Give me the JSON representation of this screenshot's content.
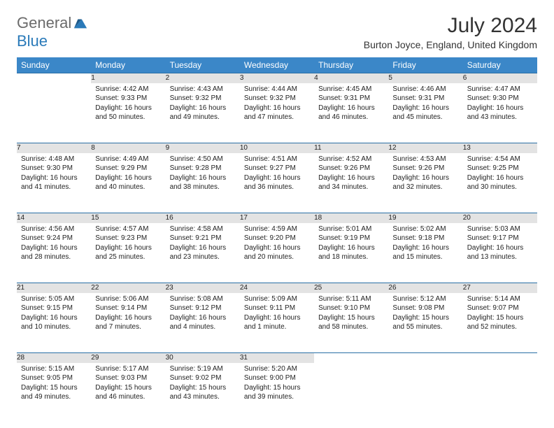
{
  "logo": {
    "general": "General",
    "blue": "Blue"
  },
  "title": "July 2024",
  "location": "Burton Joyce, England, United Kingdom",
  "colors": {
    "header_bg": "#3b87c8",
    "daynum_bg": "#e3e3e3",
    "row_border": "#2a6fa5",
    "logo_general": "#6b6b6b",
    "logo_blue": "#2a7ab9"
  },
  "day_headers": [
    "Sunday",
    "Monday",
    "Tuesday",
    "Wednesday",
    "Thursday",
    "Friday",
    "Saturday"
  ],
  "weeks": [
    [
      {
        "num": "",
        "sunrise": "",
        "sunset": "",
        "daylight": ""
      },
      {
        "num": "1",
        "sunrise": "Sunrise: 4:42 AM",
        "sunset": "Sunset: 9:33 PM",
        "daylight": "Daylight: 16 hours and 50 minutes."
      },
      {
        "num": "2",
        "sunrise": "Sunrise: 4:43 AM",
        "sunset": "Sunset: 9:32 PM",
        "daylight": "Daylight: 16 hours and 49 minutes."
      },
      {
        "num": "3",
        "sunrise": "Sunrise: 4:44 AM",
        "sunset": "Sunset: 9:32 PM",
        "daylight": "Daylight: 16 hours and 47 minutes."
      },
      {
        "num": "4",
        "sunrise": "Sunrise: 4:45 AM",
        "sunset": "Sunset: 9:31 PM",
        "daylight": "Daylight: 16 hours and 46 minutes."
      },
      {
        "num": "5",
        "sunrise": "Sunrise: 4:46 AM",
        "sunset": "Sunset: 9:31 PM",
        "daylight": "Daylight: 16 hours and 45 minutes."
      },
      {
        "num": "6",
        "sunrise": "Sunrise: 4:47 AM",
        "sunset": "Sunset: 9:30 PM",
        "daylight": "Daylight: 16 hours and 43 minutes."
      }
    ],
    [
      {
        "num": "7",
        "sunrise": "Sunrise: 4:48 AM",
        "sunset": "Sunset: 9:30 PM",
        "daylight": "Daylight: 16 hours and 41 minutes."
      },
      {
        "num": "8",
        "sunrise": "Sunrise: 4:49 AM",
        "sunset": "Sunset: 9:29 PM",
        "daylight": "Daylight: 16 hours and 40 minutes."
      },
      {
        "num": "9",
        "sunrise": "Sunrise: 4:50 AM",
        "sunset": "Sunset: 9:28 PM",
        "daylight": "Daylight: 16 hours and 38 minutes."
      },
      {
        "num": "10",
        "sunrise": "Sunrise: 4:51 AM",
        "sunset": "Sunset: 9:27 PM",
        "daylight": "Daylight: 16 hours and 36 minutes."
      },
      {
        "num": "11",
        "sunrise": "Sunrise: 4:52 AM",
        "sunset": "Sunset: 9:26 PM",
        "daylight": "Daylight: 16 hours and 34 minutes."
      },
      {
        "num": "12",
        "sunrise": "Sunrise: 4:53 AM",
        "sunset": "Sunset: 9:26 PM",
        "daylight": "Daylight: 16 hours and 32 minutes."
      },
      {
        "num": "13",
        "sunrise": "Sunrise: 4:54 AM",
        "sunset": "Sunset: 9:25 PM",
        "daylight": "Daylight: 16 hours and 30 minutes."
      }
    ],
    [
      {
        "num": "14",
        "sunrise": "Sunrise: 4:56 AM",
        "sunset": "Sunset: 9:24 PM",
        "daylight": "Daylight: 16 hours and 28 minutes."
      },
      {
        "num": "15",
        "sunrise": "Sunrise: 4:57 AM",
        "sunset": "Sunset: 9:23 PM",
        "daylight": "Daylight: 16 hours and 25 minutes."
      },
      {
        "num": "16",
        "sunrise": "Sunrise: 4:58 AM",
        "sunset": "Sunset: 9:21 PM",
        "daylight": "Daylight: 16 hours and 23 minutes."
      },
      {
        "num": "17",
        "sunrise": "Sunrise: 4:59 AM",
        "sunset": "Sunset: 9:20 PM",
        "daylight": "Daylight: 16 hours and 20 minutes."
      },
      {
        "num": "18",
        "sunrise": "Sunrise: 5:01 AM",
        "sunset": "Sunset: 9:19 PM",
        "daylight": "Daylight: 16 hours and 18 minutes."
      },
      {
        "num": "19",
        "sunrise": "Sunrise: 5:02 AM",
        "sunset": "Sunset: 9:18 PM",
        "daylight": "Daylight: 16 hours and 15 minutes."
      },
      {
        "num": "20",
        "sunrise": "Sunrise: 5:03 AM",
        "sunset": "Sunset: 9:17 PM",
        "daylight": "Daylight: 16 hours and 13 minutes."
      }
    ],
    [
      {
        "num": "21",
        "sunrise": "Sunrise: 5:05 AM",
        "sunset": "Sunset: 9:15 PM",
        "daylight": "Daylight: 16 hours and 10 minutes."
      },
      {
        "num": "22",
        "sunrise": "Sunrise: 5:06 AM",
        "sunset": "Sunset: 9:14 PM",
        "daylight": "Daylight: 16 hours and 7 minutes."
      },
      {
        "num": "23",
        "sunrise": "Sunrise: 5:08 AM",
        "sunset": "Sunset: 9:12 PM",
        "daylight": "Daylight: 16 hours and 4 minutes."
      },
      {
        "num": "24",
        "sunrise": "Sunrise: 5:09 AM",
        "sunset": "Sunset: 9:11 PM",
        "daylight": "Daylight: 16 hours and 1 minute."
      },
      {
        "num": "25",
        "sunrise": "Sunrise: 5:11 AM",
        "sunset": "Sunset: 9:10 PM",
        "daylight": "Daylight: 15 hours and 58 minutes."
      },
      {
        "num": "26",
        "sunrise": "Sunrise: 5:12 AM",
        "sunset": "Sunset: 9:08 PM",
        "daylight": "Daylight: 15 hours and 55 minutes."
      },
      {
        "num": "27",
        "sunrise": "Sunrise: 5:14 AM",
        "sunset": "Sunset: 9:07 PM",
        "daylight": "Daylight: 15 hours and 52 minutes."
      }
    ],
    [
      {
        "num": "28",
        "sunrise": "Sunrise: 5:15 AM",
        "sunset": "Sunset: 9:05 PM",
        "daylight": "Daylight: 15 hours and 49 minutes."
      },
      {
        "num": "29",
        "sunrise": "Sunrise: 5:17 AM",
        "sunset": "Sunset: 9:03 PM",
        "daylight": "Daylight: 15 hours and 46 minutes."
      },
      {
        "num": "30",
        "sunrise": "Sunrise: 5:19 AM",
        "sunset": "Sunset: 9:02 PM",
        "daylight": "Daylight: 15 hours and 43 minutes."
      },
      {
        "num": "31",
        "sunrise": "Sunrise: 5:20 AM",
        "sunset": "Sunset: 9:00 PM",
        "daylight": "Daylight: 15 hours and 39 minutes."
      },
      {
        "num": "",
        "sunrise": "",
        "sunset": "",
        "daylight": ""
      },
      {
        "num": "",
        "sunrise": "",
        "sunset": "",
        "daylight": ""
      },
      {
        "num": "",
        "sunrise": "",
        "sunset": "",
        "daylight": ""
      }
    ]
  ]
}
